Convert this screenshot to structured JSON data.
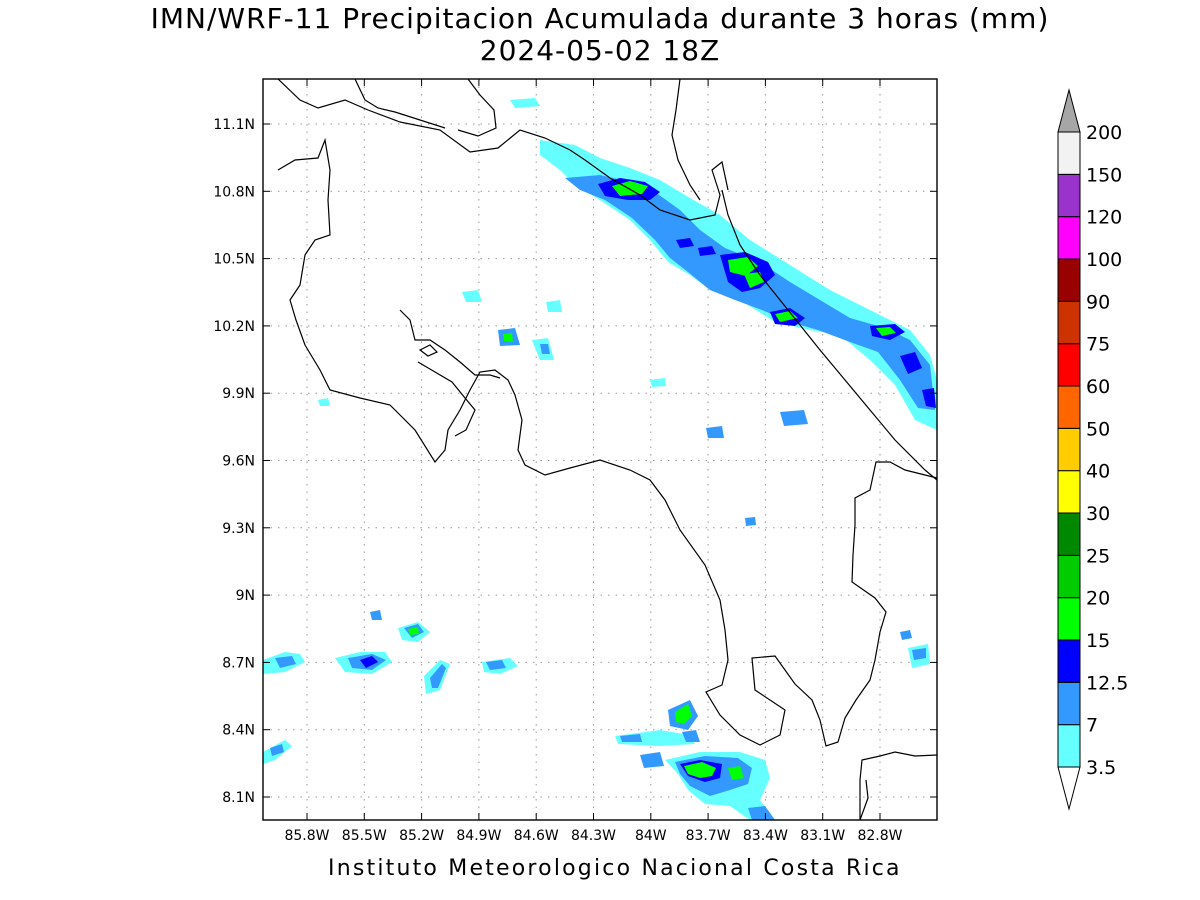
{
  "title": {
    "line1": "IMN/WRF-11 Precipitacion Acumulada durante 3 horas (mm)",
    "line2": "2024-05-02 18Z"
  },
  "footer": "Instituto Meteorologico Nacional Costa Rica",
  "map": {
    "lat_ticks": [
      "11.1N",
      "10.8N",
      "10.5N",
      "10.2N",
      "9.9N",
      "9.6N",
      "9.3N",
      "9N",
      "8.7N",
      "8.4N",
      "8.1N"
    ],
    "lon_ticks": [
      "85.8W",
      "85.5W",
      "85.2W",
      "84.9W",
      "84.6W",
      "84.3W",
      "84W",
      "83.7W",
      "83.4W",
      "83.1W",
      "82.8W"
    ],
    "grid": "dotted",
    "coastline_color": "#000000"
  },
  "colorbar": {
    "levels": [
      "3.5",
      "7",
      "12.5",
      "15",
      "20",
      "25",
      "30",
      "40",
      "50",
      "60",
      "75",
      "90",
      "100",
      "120",
      "150",
      "200"
    ],
    "colors": [
      "#66ffff",
      "#3399ff",
      "#0000ff",
      "#00ff00",
      "#00cc00",
      "#008800",
      "#ffff00",
      "#ffcc00",
      "#ff6600",
      "#ff0000",
      "#cc3300",
      "#990000",
      "#ff00ff",
      "#9933cc",
      "#f2f2f2"
    ],
    "under_color": "#ffffff",
    "over_color": "#a6a6a6"
  }
}
